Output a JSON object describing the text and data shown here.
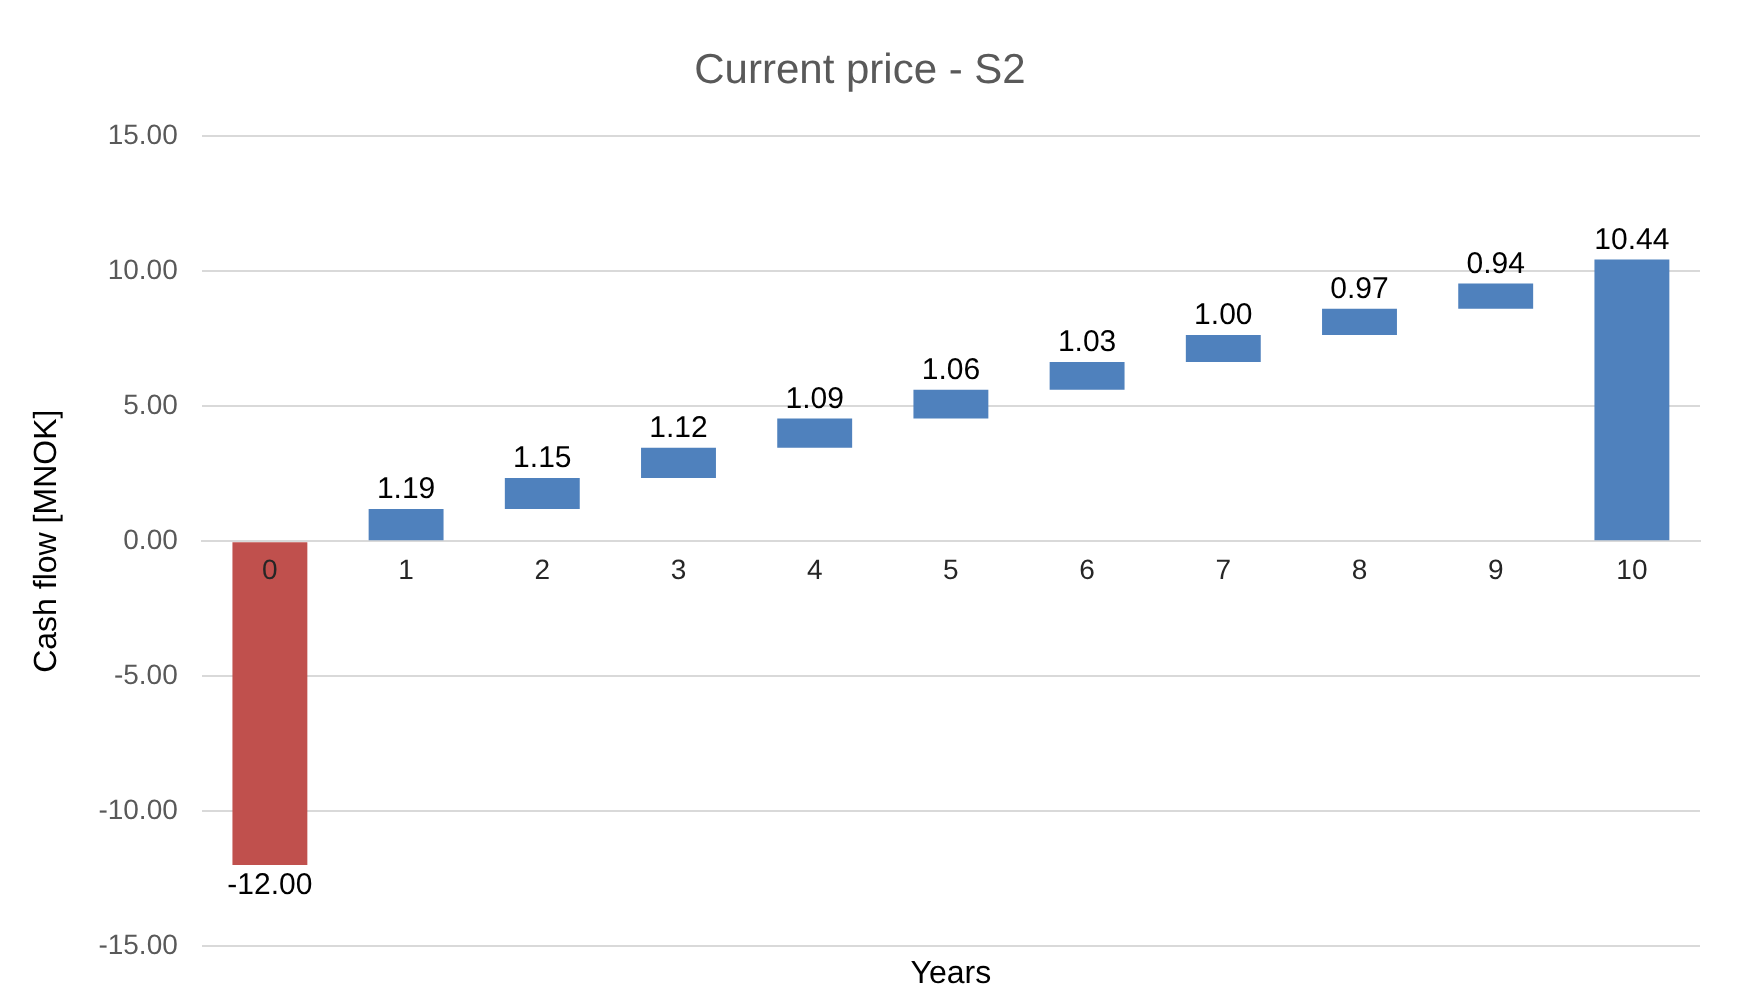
{
  "chart_data": {
    "type": "bar",
    "title": "Current price - S2",
    "xlabel": "Years",
    "ylabel": "Cash flow [MNOK]",
    "categories": [
      "0",
      "1",
      "2",
      "3",
      "4",
      "5",
      "6",
      "7",
      "8",
      "9",
      "10"
    ],
    "values": [
      -12.0,
      1.19,
      1.15,
      1.12,
      1.09,
      1.06,
      1.03,
      1.0,
      0.97,
      0.94,
      10.44
    ],
    "base": [
      0,
      0,
      1.19,
      2.34,
      3.46,
      4.55,
      5.61,
      6.64,
      7.64,
      8.61,
      0
    ],
    "colors": [
      "#c0504d",
      "#4f81bd",
      "#4f81bd",
      "#4f81bd",
      "#4f81bd",
      "#4f81bd",
      "#4f81bd",
      "#4f81bd",
      "#4f81bd",
      "#4f81bd",
      "#4f81bd"
    ],
    "value_labels": [
      "-12.00",
      "1.19",
      "1.15",
      "1.12",
      "1.09",
      "1.06",
      "1.03",
      "1.00",
      "0.97",
      "0.94",
      "10.44"
    ],
    "ylim": [
      -15,
      15
    ],
    "yticks": [
      {
        "value": -15,
        "label": "-15.00"
      },
      {
        "value": -10,
        "label": "-10.00"
      },
      {
        "value": -5,
        "label": "-5.00"
      },
      {
        "value": 0,
        "label": "0.00"
      },
      {
        "value": 5,
        "label": "5.00"
      },
      {
        "value": 10,
        "label": "10.00"
      },
      {
        "value": 15,
        "label": "15.00"
      }
    ],
    "grid": "y",
    "legend": false
  }
}
